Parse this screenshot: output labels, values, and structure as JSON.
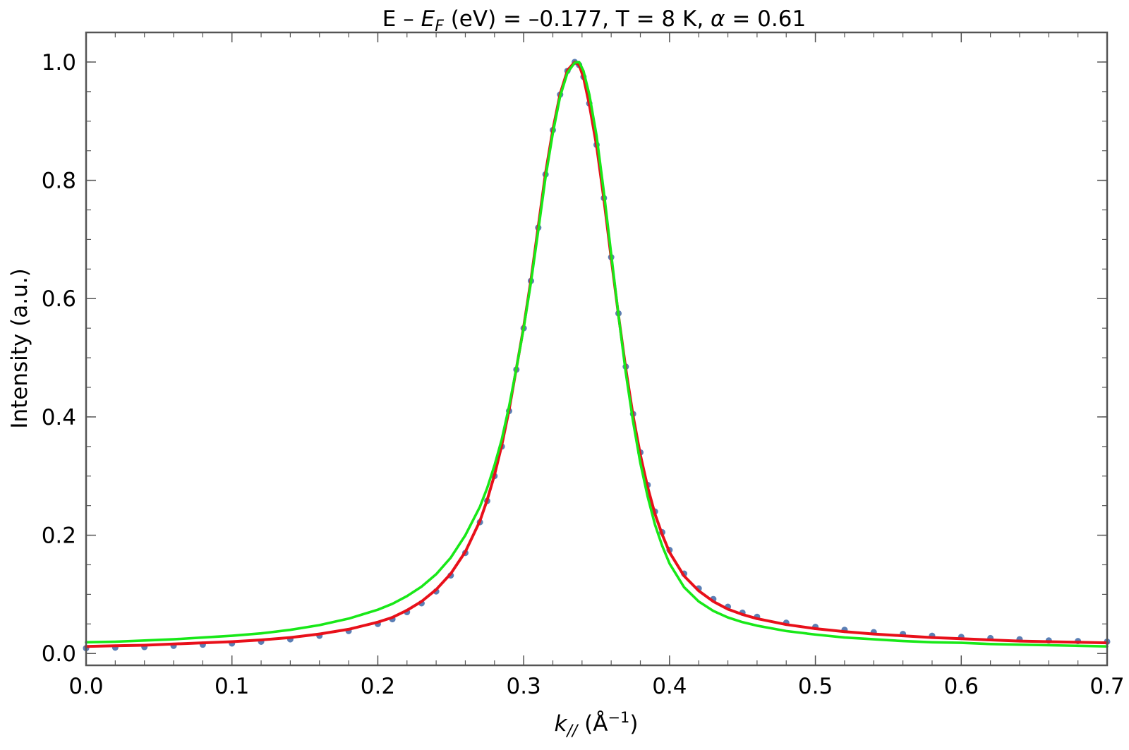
{
  "chart_data": {
    "type": "line",
    "title": {
      "prefix": "E – ",
      "symbol": "E",
      "symbol_sub": "F",
      "suffix": " (eV) = –0.177, T = 8 K, ",
      "greek": "α",
      "greek_suffix": " = 0.61"
    },
    "xlabel": {
      "symbol": "k",
      "symbol_sub": "//",
      "unit_prefix": " (Å",
      "unit_sup": "−1",
      "unit_suffix": ")"
    },
    "ylabel": "Intensity (a.u.)",
    "xlim": [
      0.0,
      0.7
    ],
    "ylim": [
      -0.02,
      1.05
    ],
    "xticks": [
      {
        "value": 0.0,
        "label": "0.0"
      },
      {
        "value": 0.1,
        "label": "0.1"
      },
      {
        "value": 0.2,
        "label": "0.2"
      },
      {
        "value": 0.3,
        "label": "0.3"
      },
      {
        "value": 0.4,
        "label": "0.4"
      },
      {
        "value": 0.5,
        "label": "0.5"
      },
      {
        "value": 0.6,
        "label": "0.6"
      },
      {
        "value": 0.7,
        "label": "0.7"
      }
    ],
    "yticks": [
      {
        "value": 0.0,
        "label": "0.0"
      },
      {
        "value": 0.2,
        "label": "0.2"
      },
      {
        "value": 0.4,
        "label": "0.4"
      },
      {
        "value": 0.6,
        "label": "0.6"
      },
      {
        "value": 0.8,
        "label": "0.8"
      },
      {
        "value": 1.0,
        "label": "1.0"
      }
    ],
    "grid": false,
    "legend": "none",
    "series": [
      {
        "style": "points",
        "color": "#5b7fb5",
        "x": [
          0.0,
          0.02,
          0.04,
          0.06,
          0.08,
          0.1,
          0.12,
          0.14,
          0.16,
          0.18,
          0.2,
          0.21,
          0.22,
          0.23,
          0.24,
          0.25,
          0.26,
          0.27,
          0.275,
          0.28,
          0.285,
          0.29,
          0.295,
          0.3,
          0.305,
          0.31,
          0.315,
          0.32,
          0.325,
          0.33,
          0.335,
          0.338,
          0.341,
          0.345,
          0.35,
          0.355,
          0.36,
          0.365,
          0.37,
          0.375,
          0.38,
          0.385,
          0.39,
          0.395,
          0.4,
          0.41,
          0.42,
          0.43,
          0.44,
          0.45,
          0.46,
          0.48,
          0.5,
          0.52,
          0.54,
          0.56,
          0.58,
          0.6,
          0.62,
          0.64,
          0.66,
          0.68,
          0.7
        ],
        "y": [
          0.009,
          0.01,
          0.011,
          0.013,
          0.015,
          0.017,
          0.02,
          0.024,
          0.03,
          0.038,
          0.05,
          0.058,
          0.07,
          0.085,
          0.105,
          0.132,
          0.17,
          0.222,
          0.258,
          0.3,
          0.35,
          0.41,
          0.48,
          0.55,
          0.63,
          0.72,
          0.81,
          0.885,
          0.945,
          0.985,
          1.0,
          0.995,
          0.975,
          0.93,
          0.86,
          0.77,
          0.67,
          0.575,
          0.485,
          0.405,
          0.34,
          0.285,
          0.24,
          0.205,
          0.175,
          0.135,
          0.11,
          0.092,
          0.079,
          0.069,
          0.062,
          0.052,
          0.045,
          0.04,
          0.036,
          0.033,
          0.03,
          0.028,
          0.026,
          0.024,
          0.022,
          0.021,
          0.02
        ]
      },
      {
        "style": "line",
        "color": "#e8101a",
        "x": [
          0.0,
          0.02,
          0.04,
          0.06,
          0.08,
          0.1,
          0.12,
          0.14,
          0.16,
          0.18,
          0.2,
          0.21,
          0.22,
          0.23,
          0.24,
          0.25,
          0.26,
          0.27,
          0.275,
          0.28,
          0.285,
          0.29,
          0.295,
          0.3,
          0.305,
          0.31,
          0.315,
          0.32,
          0.325,
          0.33,
          0.335,
          0.338,
          0.341,
          0.345,
          0.35,
          0.355,
          0.36,
          0.365,
          0.37,
          0.375,
          0.38,
          0.385,
          0.39,
          0.395,
          0.4,
          0.41,
          0.42,
          0.43,
          0.44,
          0.45,
          0.46,
          0.48,
          0.5,
          0.52,
          0.54,
          0.56,
          0.58,
          0.6,
          0.62,
          0.64,
          0.66,
          0.68,
          0.7
        ],
        "y": [
          0.012,
          0.013,
          0.014,
          0.016,
          0.018,
          0.02,
          0.023,
          0.027,
          0.033,
          0.041,
          0.053,
          0.061,
          0.073,
          0.088,
          0.108,
          0.135,
          0.172,
          0.224,
          0.26,
          0.302,
          0.352,
          0.412,
          0.482,
          0.552,
          0.632,
          0.722,
          0.812,
          0.886,
          0.946,
          0.986,
          1.0,
          0.995,
          0.974,
          0.928,
          0.858,
          0.768,
          0.668,
          0.572,
          0.482,
          0.402,
          0.336,
          0.281,
          0.236,
          0.201,
          0.171,
          0.131,
          0.106,
          0.088,
          0.075,
          0.066,
          0.059,
          0.049,
          0.042,
          0.037,
          0.033,
          0.03,
          0.027,
          0.025,
          0.023,
          0.021,
          0.02,
          0.019,
          0.018
        ]
      },
      {
        "style": "line",
        "color": "#18e818",
        "x": [
          0.0,
          0.02,
          0.04,
          0.06,
          0.08,
          0.1,
          0.12,
          0.14,
          0.16,
          0.18,
          0.2,
          0.21,
          0.22,
          0.23,
          0.24,
          0.25,
          0.26,
          0.27,
          0.275,
          0.28,
          0.285,
          0.29,
          0.295,
          0.3,
          0.305,
          0.31,
          0.315,
          0.32,
          0.325,
          0.33,
          0.335,
          0.338,
          0.341,
          0.345,
          0.35,
          0.355,
          0.36,
          0.365,
          0.37,
          0.375,
          0.38,
          0.385,
          0.39,
          0.395,
          0.4,
          0.41,
          0.42,
          0.43,
          0.44,
          0.45,
          0.46,
          0.48,
          0.5,
          0.52,
          0.54,
          0.56,
          0.58,
          0.6,
          0.62,
          0.64,
          0.66,
          0.68,
          0.7
        ],
        "y": [
          0.019,
          0.02,
          0.022,
          0.024,
          0.027,
          0.03,
          0.034,
          0.04,
          0.048,
          0.059,
          0.074,
          0.084,
          0.097,
          0.113,
          0.134,
          0.162,
          0.2,
          0.248,
          0.28,
          0.318,
          0.362,
          0.418,
          0.482,
          0.55,
          0.628,
          0.715,
          0.805,
          0.88,
          0.942,
          0.982,
          0.999,
          1.0,
          0.985,
          0.945,
          0.875,
          0.78,
          0.675,
          0.572,
          0.475,
          0.392,
          0.322,
          0.265,
          0.218,
          0.182,
          0.152,
          0.112,
          0.088,
          0.072,
          0.061,
          0.053,
          0.047,
          0.038,
          0.032,
          0.027,
          0.024,
          0.021,
          0.019,
          0.018,
          0.016,
          0.015,
          0.014,
          0.013,
          0.012
        ]
      }
    ]
  }
}
